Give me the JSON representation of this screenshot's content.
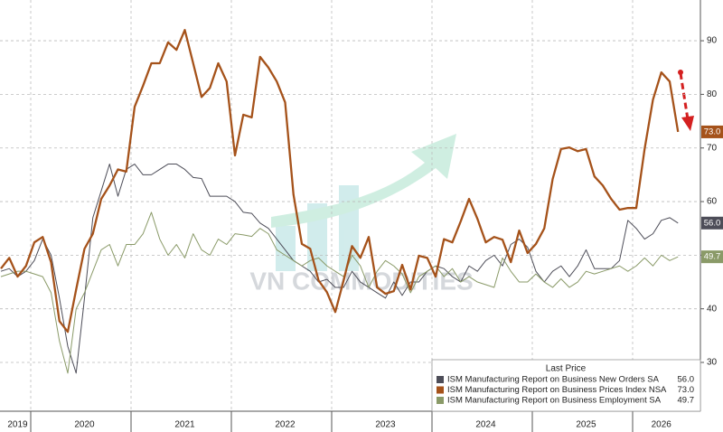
{
  "chart_data": {
    "type": "line",
    "watermark": "VN COMMODITIES",
    "legend_title": "Last Price",
    "categories": [
      null,
      null,
      "2019",
      null,
      null,
      null,
      null,
      null,
      null,
      null,
      "2020",
      null,
      null,
      null,
      null,
      null,
      null,
      null,
      null,
      null,
      null,
      null,
      "2021",
      null,
      null,
      null,
      null,
      null,
      null,
      null,
      null,
      null,
      null,
      null,
      "2022",
      null,
      null,
      null,
      null,
      null,
      null,
      null,
      null,
      null,
      null,
      null,
      "2023",
      null,
      null,
      null,
      null,
      null,
      null,
      null,
      null,
      null,
      null,
      null,
      "2024",
      null,
      null,
      null,
      null,
      null,
      null,
      null,
      null,
      null,
      null,
      null,
      "2025",
      null,
      null,
      null,
      null,
      null,
      null,
      null,
      null,
      "2026",
      null,
      null
    ],
    "series": [
      {
        "name": "ISM Manufacturing Report on Business New Orders SA",
        "color": "#4d4d58",
        "last_label": "56.0",
        "values": [
          47,
          47.5,
          46,
          47,
          49,
          53,
          50,
          42,
          33,
          28,
          42,
          57,
          62,
          67,
          61,
          66,
          67,
          65,
          65,
          66,
          67,
          67,
          66,
          64.5,
          64.3,
          61,
          61,
          61,
          60,
          58,
          57.8,
          56,
          55,
          53,
          51,
          49,
          48,
          47,
          45,
          45.5,
          44,
          44,
          47,
          45,
          44,
          43,
          42,
          45,
          42.5,
          45,
          45,
          47,
          48,
          47.5,
          46,
          45,
          48,
          47,
          49,
          50,
          48,
          52,
          53,
          51.5,
          47,
          45,
          47,
          48,
          46,
          48,
          51,
          47.5,
          47.5,
          47.5,
          49,
          56.5,
          55,
          53,
          54,
          56.5,
          57,
          56
        ]
      },
      {
        "name": "ISM Manufacturing Report on Business Prices Index NSA",
        "color": "#a5521a",
        "last_label": "73.0",
        "values": [
          47.5,
          49.5,
          46,
          48,
          52.4,
          53.4,
          48.7,
          37.7,
          35.7,
          43.6,
          51.2,
          54,
          60.5,
          63,
          66,
          65.6,
          77.7,
          81.6,
          85.8,
          85.8,
          89.7,
          88.3,
          92,
          85.8,
          79.5,
          81.2,
          85.8,
          82.4,
          68.6,
          76.2,
          75.7,
          87,
          85,
          82.4,
          78.5,
          61.3,
          52.1,
          51.2,
          45.3,
          43.1,
          39.4,
          45.3,
          51.7,
          49.5,
          53.4,
          44,
          42.8,
          43.3,
          48.2,
          43.6,
          49.9,
          49.5,
          46,
          53,
          52.4,
          56.3,
          60.5,
          56.8,
          52.4,
          53.4,
          52.9,
          48.7,
          54.6,
          50.4,
          52.1,
          55,
          64.2,
          69.8,
          70.1,
          69.4,
          69.8,
          64.7,
          63,
          60.5,
          58.5,
          58.8,
          58.8,
          69.8,
          79,
          84.1,
          82.4,
          73
        ]
      },
      {
        "name": "ISM Manufacturing Report on Business Employment SA",
        "color": "#8a9a68",
        "last_label": "49.7",
        "values": [
          46,
          46.5,
          47,
          47,
          46.5,
          46,
          43,
          34,
          28,
          40,
          43,
          47,
          51,
          52,
          48,
          52,
          52,
          54,
          58,
          53,
          50,
          52,
          49.5,
          54,
          51,
          50,
          53,
          52,
          54,
          53.8,
          53.5,
          55,
          54,
          51,
          50,
          49,
          48,
          49,
          49.5,
          48,
          47,
          46,
          50,
          48,
          44,
          47,
          49,
          48,
          46.5,
          43,
          46,
          47,
          48,
          46,
          47.5,
          45,
          46,
          45,
          44.5,
          44,
          49.5,
          47,
          45,
          45,
          46.5,
          45,
          44,
          45.6,
          44,
          45,
          47,
          46.5,
          47,
          47.5,
          48,
          47,
          48,
          49.5,
          48,
          50,
          49,
          49.7
        ]
      }
    ],
    "ylim": [
      20.9,
      97.6
    ],
    "yticks": [
      30,
      40,
      50,
      60,
      70,
      80,
      90
    ],
    "grid": true
  }
}
